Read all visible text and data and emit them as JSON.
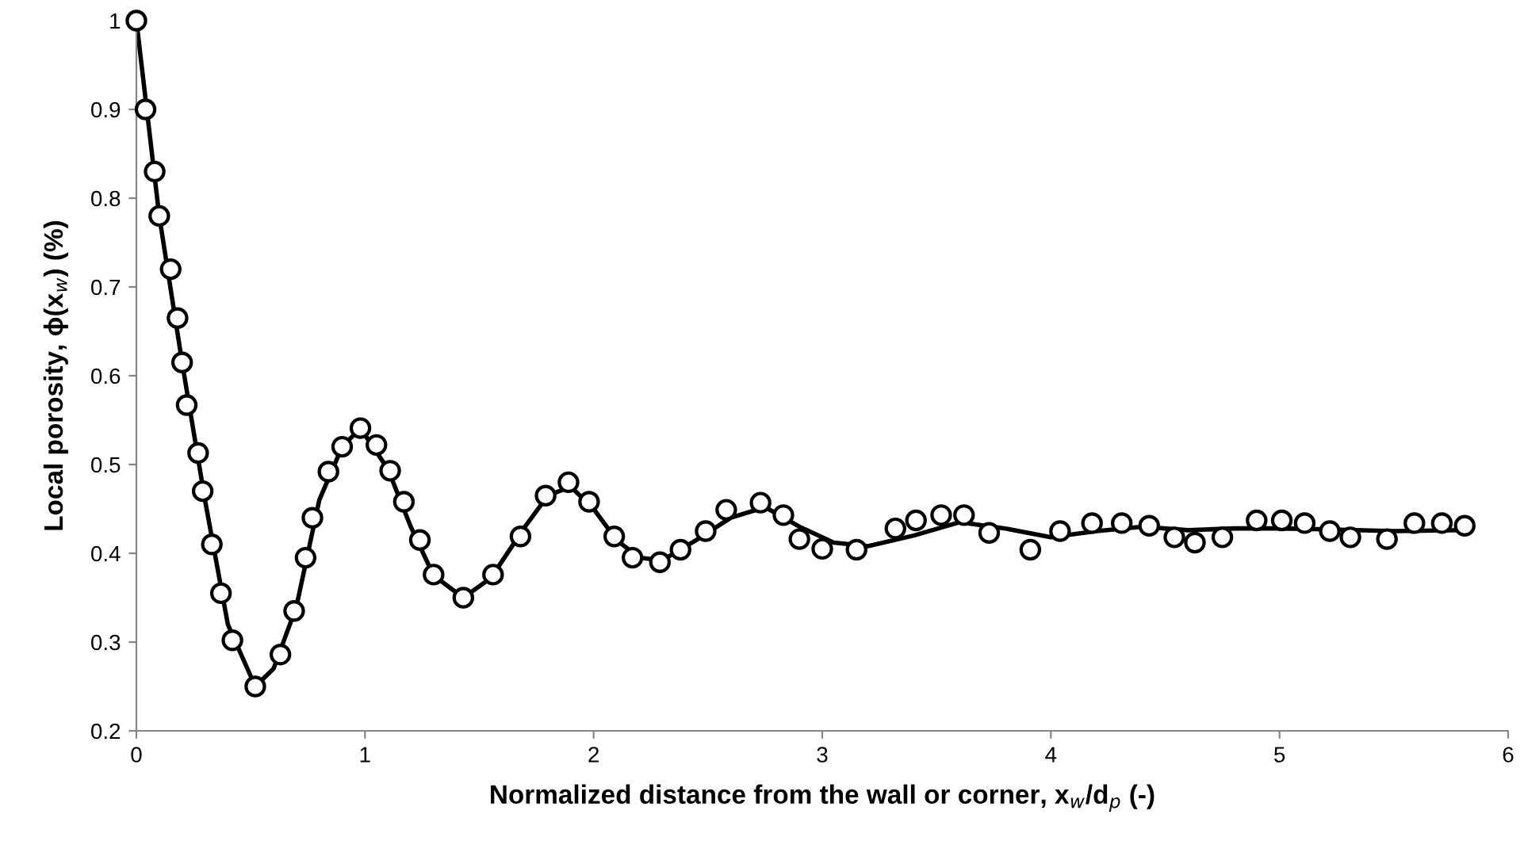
{
  "chart_data": {
    "type": "scatter",
    "xlabel": "Normalized distance from the wall or corner, x$_{w}$/d$_{p}$ (-)",
    "ylabel": "Local porosity, ϕ(x$_{w}$) (%)",
    "xlim": [
      0,
      6
    ],
    "xticks": [
      0,
      1,
      2,
      3,
      4,
      5,
      6
    ],
    "ylim": [
      0.2,
      1
    ],
    "yticks": [
      0.2,
      0.3,
      0.4,
      0.5,
      0.6,
      0.7,
      0.8,
      0.9,
      1
    ],
    "grid": false,
    "legend": false,
    "series": [
      {
        "type": "line",
        "color": "#000000",
        "marker": "none",
        "line_style": "solid",
        "x": [
          0,
          0.1,
          0.2,
          0.3,
          0.4,
          0.52,
          0.6,
          0.7,
          0.8,
          0.9,
          0.98,
          1.1,
          1.2,
          1.3,
          1.43,
          1.55,
          1.7,
          1.8,
          1.9,
          2.0,
          2.1,
          2.2,
          2.3,
          2.45,
          2.6,
          2.75,
          2.9,
          3.05,
          3.2,
          3.4,
          3.6,
          3.8,
          4.0,
          4.2,
          4.4,
          4.6,
          4.8,
          5.0,
          5.2,
          5.5,
          5.8
        ],
        "values": [
          1.0,
          0.78,
          0.615,
          0.46,
          0.32,
          0.25,
          0.27,
          0.34,
          0.46,
          0.52,
          0.541,
          0.495,
          0.43,
          0.375,
          0.35,
          0.372,
          0.43,
          0.465,
          0.475,
          0.45,
          0.415,
          0.395,
          0.392,
          0.415,
          0.44,
          0.452,
          0.43,
          0.412,
          0.408,
          0.42,
          0.435,
          0.428,
          0.418,
          0.425,
          0.43,
          0.426,
          0.428,
          0.428,
          0.427,
          0.425,
          0.426
        ]
      },
      {
        "color": "#000000",
        "marker": "circle",
        "x": [
          0,
          0.04,
          0.08,
          0.1,
          0.15,
          0.18,
          0.2,
          0.22,
          0.27,
          0.29,
          0.33,
          0.37,
          0.42,
          0.52,
          0.63,
          0.69,
          0.74,
          0.77,
          0.84,
          0.9,
          0.98,
          1.05,
          1.11,
          1.17,
          1.24,
          1.3,
          1.43,
          1.56,
          1.68,
          1.79,
          1.89,
          1.98,
          2.09,
          2.17,
          2.29,
          2.38,
          2.49,
          2.58,
          2.73,
          2.83,
          2.9,
          3.0,
          3.15,
          3.32,
          3.41,
          3.52,
          3.62,
          3.73,
          3.91,
          4.04,
          4.18,
          4.31,
          4.43,
          4.54,
          4.63,
          4.75,
          4.9,
          5.01,
          5.11,
          5.22,
          5.31,
          5.47,
          5.59,
          5.71,
          5.81
        ],
        "values": [
          1.0,
          0.9,
          0.83,
          0.78,
          0.72,
          0.665,
          0.615,
          0.567,
          0.513,
          0.47,
          0.41,
          0.355,
          0.302,
          0.25,
          0.286,
          0.335,
          0.395,
          0.44,
          0.492,
          0.52,
          0.541,
          0.522,
          0.493,
          0.458,
          0.415,
          0.376,
          0.35,
          0.376,
          0.419,
          0.465,
          0.48,
          0.458,
          0.419,
          0.395,
          0.39,
          0.404,
          0.425,
          0.449,
          0.457,
          0.443,
          0.416,
          0.405,
          0.404,
          0.428,
          0.437,
          0.443,
          0.443,
          0.423,
          0.404,
          0.425,
          0.434,
          0.434,
          0.431,
          0.418,
          0.412,
          0.418,
          0.437,
          0.437,
          0.434,
          0.425,
          0.418,
          0.416,
          0.434,
          0.434,
          0.431
        ]
      }
    ]
  }
}
